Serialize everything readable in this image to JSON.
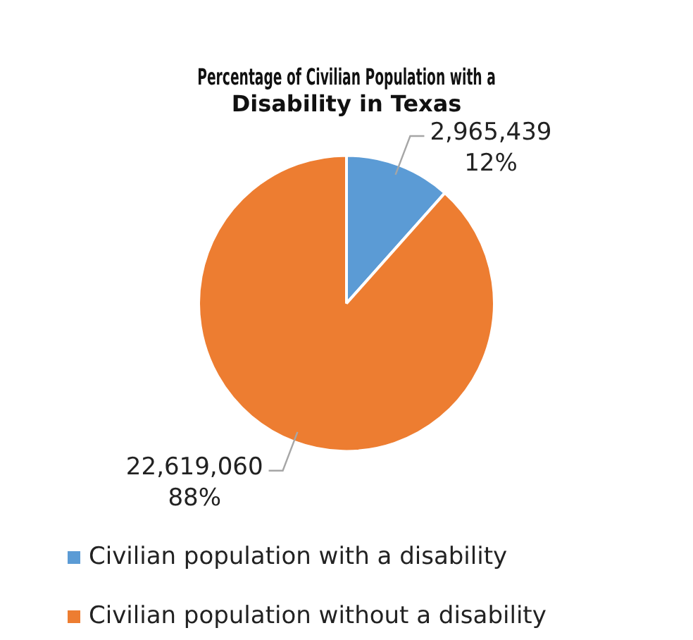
{
  "chart_data": {
    "type": "pie",
    "title": "Percentage of Civilian Population with a Disability in Texas",
    "categories": [
      "Civilian population with a disability",
      "Civilian population without a disability"
    ],
    "values": [
      2965439,
      22619060
    ],
    "colors": [
      "#5b9bd5",
      "#ed7d31"
    ],
    "value_labels": [
      "2,965,439\n12%",
      "22,619,060\n88%"
    ],
    "legend": "bottom"
  }
}
